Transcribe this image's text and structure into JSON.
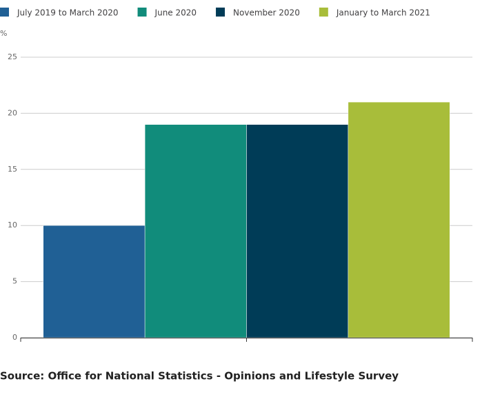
{
  "chart_data": {
    "type": "bar",
    "y_label": "%",
    "categories": [
      null
    ],
    "series": [
      {
        "name": "July 2019 to March 2020",
        "color": "#206095",
        "values": [
          10
        ]
      },
      {
        "name": "June 2020",
        "color": "#118c7b",
        "values": [
          19
        ]
      },
      {
        "name": "November 2020",
        "color": "#003c57",
        "values": [
          19
        ]
      },
      {
        "name": "January to March 2021",
        "color": "#a8bd3a",
        "values": [
          21
        ]
      }
    ],
    "ylim": [
      0,
      25
    ],
    "yticks": [
      0,
      5,
      10,
      15,
      20,
      25
    ],
    "grid": true,
    "legend": "top",
    "source": "Source: Office for National Statistics - Opinions and Lifestyle Survey"
  }
}
